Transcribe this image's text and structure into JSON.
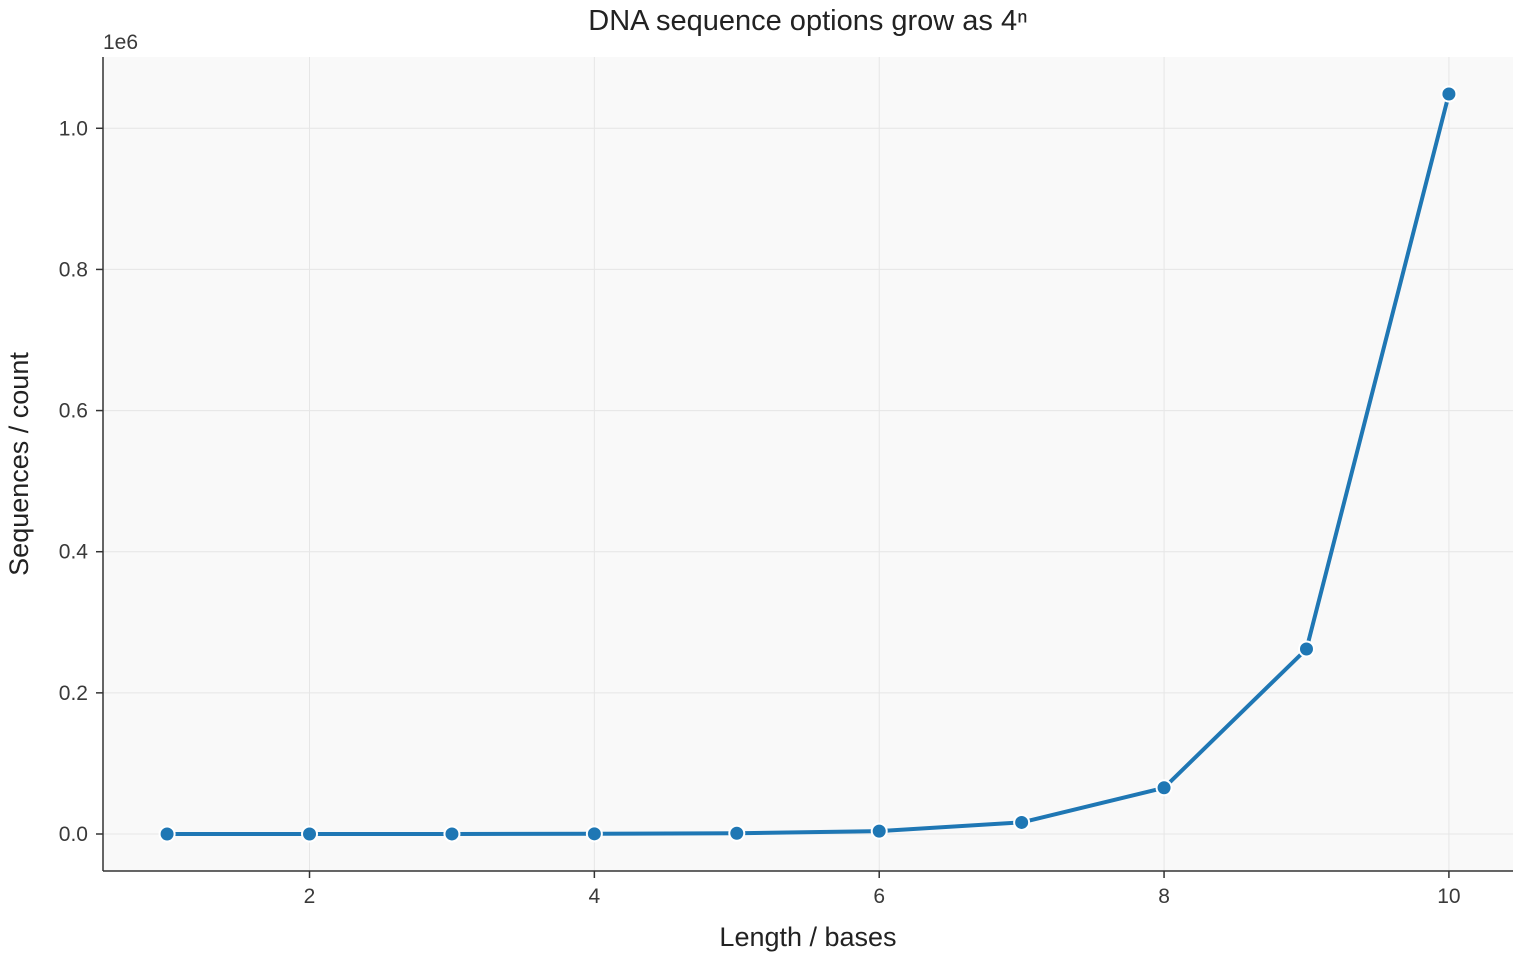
{
  "chart_data": {
    "type": "line",
    "title": "DNA sequence options grow as 4ⁿ",
    "xlabel": "Length / bases",
    "ylabel": "Sequences / count",
    "y_offset_label": "1e6",
    "xlim": [
      0.55,
      10.45
    ],
    "ylim": [
      -52428.8,
      1101004.8
    ],
    "x_ticks": [
      2,
      4,
      6,
      8,
      10
    ],
    "x_tick_labels": [
      "2",
      "4",
      "6",
      "8",
      "10"
    ],
    "y_ticks": [
      0,
      200000,
      400000,
      600000,
      800000,
      1000000
    ],
    "y_tick_labels": [
      "0.0",
      "0.2",
      "0.4",
      "0.6",
      "0.8",
      "1.0"
    ],
    "grid": true,
    "series": [
      {
        "color": "#1f77b4",
        "x": [
          1,
          2,
          3,
          4,
          5,
          6,
          7,
          8,
          9,
          10
        ],
        "y": [
          4,
          16,
          64,
          256,
          1024,
          4096,
          16384,
          65536,
          262144,
          1048576
        ]
      }
    ]
  },
  "colors": {
    "plot_background": "#f9f9f9",
    "grid": "#e6e6e6",
    "line": "#1f77b4",
    "marker_edge": "#ffffff"
  }
}
